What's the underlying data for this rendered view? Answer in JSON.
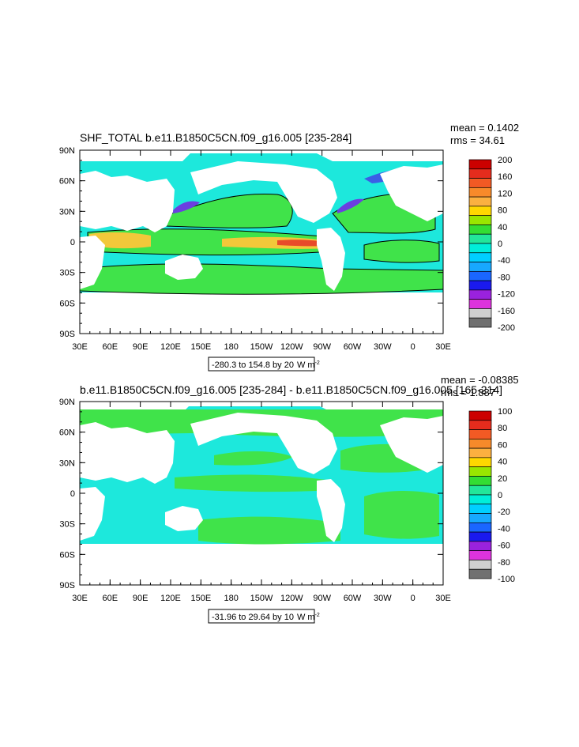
{
  "chart_data": [
    {
      "type": "heatmap",
      "title": "SHF_TOTAL b.e11.B1850C5CN.f09_g16.005 [235-284]",
      "stats": {
        "mean": "mean = 0.1402",
        "rms": "rms = 34.61"
      },
      "range_note": "-280.3 to 154.8 by 20",
      "units": "W m",
      "units_exp": "-2",
      "x_ticks": [
        "30E",
        "60E",
        "90E",
        "120E",
        "150E",
        "180",
        "150W",
        "120W",
        "90W",
        "60W",
        "30W",
        "0",
        "30E"
      ],
      "y_ticks": [
        "90N",
        "60N",
        "30N",
        "0",
        "30S",
        "60S",
        "90S"
      ],
      "colorbar": {
        "levels": [
          "200",
          "160",
          "120",
          "80",
          "40",
          "0",
          "-40",
          "-80",
          "-120",
          "-160",
          "-200"
        ],
        "colors": [
          "#cc0000",
          "#e52c1d",
          "#f25a24",
          "#f78a2a",
          "#fbb040",
          "#ffd700",
          "#99e600",
          "#33dd33",
          "#22e69a",
          "#00eed9",
          "#00cfff",
          "#17a8ff",
          "#1a66ff",
          "#1a1aee",
          "#9a22dd",
          "#dd33dd",
          "#d0d0d0",
          "#707070"
        ]
      },
      "map_style": {
        "ocean": "#1de8dc",
        "band": "#40e34a",
        "warm": "#f2c83a",
        "hot": "#e84a2a"
      }
    },
    {
      "type": "heatmap",
      "title": "b.e11.B1850C5CN.f09_g16.005 [235-284] - b.e11.B1850C5CN.f09_g16.005 [165-214]",
      "stats": {
        "mean": "mean = -0.08385",
        "rms": "rms = 1.887"
      },
      "range_note": "-31.96 to 29.64 by 10",
      "units": "W m",
      "units_exp": "-2",
      "x_ticks": [
        "30E",
        "60E",
        "90E",
        "120E",
        "150E",
        "180",
        "150W",
        "120W",
        "90W",
        "60W",
        "30W",
        "0",
        "30E"
      ],
      "y_ticks": [
        "90N",
        "60N",
        "30N",
        "0",
        "30S",
        "60S",
        "90S"
      ],
      "colorbar": {
        "levels": [
          "100",
          "80",
          "60",
          "40",
          "20",
          "0",
          "-20",
          "-40",
          "-60",
          "-80",
          "-100"
        ],
        "colors": [
          "#cc0000",
          "#e52c1d",
          "#f25a24",
          "#f78a2a",
          "#fbb040",
          "#ffd700",
          "#99e600",
          "#33dd33",
          "#22e69a",
          "#00eed9",
          "#00cfff",
          "#17a8ff",
          "#1a66ff",
          "#1a1aee",
          "#9a22dd",
          "#dd33dd",
          "#d0d0d0",
          "#707070"
        ]
      },
      "map_style": {
        "ocean": "#1de8dc",
        "band": "#40e34a",
        "warm": "#1de8dc",
        "hot": "#1de8dc"
      }
    }
  ]
}
